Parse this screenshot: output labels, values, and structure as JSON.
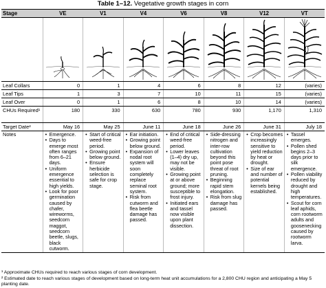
{
  "title": {
    "label": "Table 1–12.",
    "text": " Vegetative growth stages in corn"
  },
  "header": {
    "stage_label": "Stage",
    "stages": [
      "VE",
      "V1",
      "V4",
      "V6",
      "V8",
      "V12",
      "VT"
    ]
  },
  "rows": [
    {
      "label": "Leaf Collars",
      "values": [
        "0",
        "1",
        "4",
        "6",
        "8",
        "12",
        "(varies)"
      ]
    },
    {
      "label": "Leaf Tips",
      "values": [
        "1",
        "3",
        "7",
        "10",
        "11",
        "15",
        "(varies)"
      ]
    },
    {
      "label": "Leaf Over",
      "values": [
        "0",
        "1",
        "6",
        "8",
        "10",
        "14",
        "(varies)"
      ]
    }
  ],
  "chu_row": {
    "label": "CHUs Required¹",
    "values": [
      "180",
      "330",
      "630",
      "780",
      "930",
      "1,170",
      "1,310"
    ]
  },
  "date_row": {
    "label": "Target Date²",
    "values": [
      "May 16",
      "May 25",
      "June 11",
      "June 18",
      "June 26",
      "June 31",
      "July 18"
    ]
  },
  "notes_label": "Notes",
  "notes": [
    [
      "Emergence.",
      "Days to emerge most often ranges from 6–21 days.",
      "Uniform emergence essential to high yields.",
      "Look for poor germination caused by chafer, wireworms, seedcorn maggot, seedcorn beetle, slugs, black cutworm."
    ],
    [
      "Start of critical weed-free period.",
      "Growing point below ground.",
      "Ensure herbicide selection is safe for crop stage."
    ],
    [
      "Ear initiation.",
      "Growing point below ground.",
      "Expansion of nodal root system will soon completely replace seminal root system.",
      "Risk from cutworm and flea beetle damage has passed."
    ],
    [
      "End of critical weed-free period.",
      "Lower leaves (1–4) dry up, may not be visible.",
      "Growing point at or above ground; more susceptible to frost injury.",
      "Initiated ears and tassel now visible upon plant dissection."
    ],
    [
      "Side-dressing nitrogen and inter-row cultivation beyond this point pose threat of root pruning.",
      "Beginning rapid stem elongation.",
      "Risk from slug damage has passed."
    ],
    [
      "Crop becomes increasingly sensitive to yield reduction by heat or drought.",
      "Size of ear and number of potential kernels being established."
    ],
    [
      "Tassel emerges.",
      "Pollen shed begins 2–3 days prior to silk emergence.",
      "Pollen viability reduced by drought and high temperatures.",
      "Scout for corn leaf aphids, corn rootworm adults and goosenecking caused by rootworm larva."
    ]
  ],
  "footnotes": [
    "¹ Approximate CHUs required to reach various stages of corn development.",
    "² Estimated date to reach various stages of development based on long-term heat unit accumulations for a 2,800 CHU region and anticipating a May 5 planting date."
  ]
}
